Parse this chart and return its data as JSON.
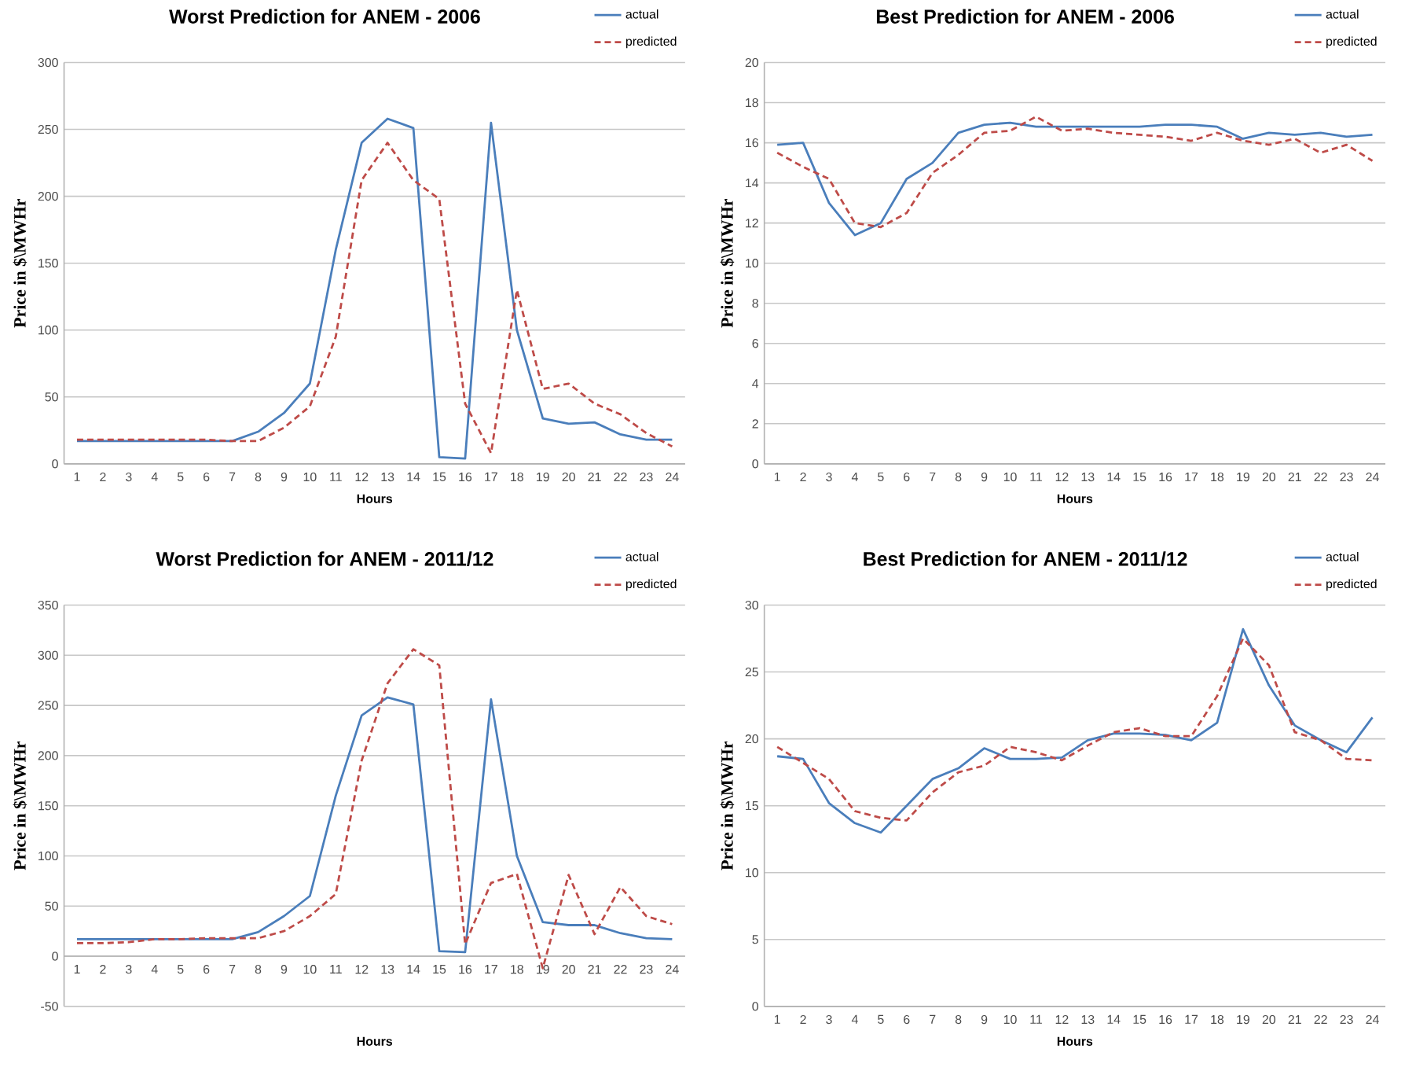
{
  "chart_data": [
    {
      "type": "line",
      "title": "Worst Prediction for ANEM - 2006",
      "xlabel": "Hours",
      "ylabel": "Price in $\\MWHr",
      "categories": [
        "1",
        "2",
        "3",
        "4",
        "5",
        "6",
        "7",
        "8",
        "9",
        "10",
        "11",
        "12",
        "13",
        "14",
        "15",
        "16",
        "17",
        "18",
        "19",
        "20",
        "21",
        "22",
        "23",
        "24"
      ],
      "ylim": [
        0,
        300
      ],
      "yticks": [
        0,
        50,
        100,
        150,
        200,
        250,
        300
      ],
      "grid": "y",
      "legend": "top right",
      "series": [
        {
          "name": "actual",
          "color": "#4a7ebb",
          "line_style": "solid",
          "values": [
            17,
            17,
            17,
            17,
            17,
            17,
            17,
            24,
            38,
            60,
            160,
            240,
            258,
            251,
            5,
            4,
            255,
            100,
            34,
            30,
            31,
            22,
            18,
            18
          ]
        },
        {
          "name": "predicted",
          "color": "#be4b48",
          "line_style": "dashed",
          "values": [
            18,
            18,
            18,
            18,
            18,
            18,
            17,
            17,
            27,
            43,
            95,
            212,
            240,
            212,
            198,
            45,
            8,
            130,
            56,
            60,
            45,
            37,
            23,
            13
          ]
        }
      ]
    },
    {
      "type": "line",
      "title": "Best Prediction for ANEM - 2006",
      "xlabel": "Hours",
      "ylabel": "Price in $\\MWHr",
      "categories": [
        "1",
        "2",
        "3",
        "4",
        "5",
        "6",
        "7",
        "8",
        "9",
        "10",
        "11",
        "12",
        "13",
        "14",
        "15",
        "16",
        "17",
        "18",
        "19",
        "20",
        "21",
        "22",
        "23",
        "24"
      ],
      "ylim": [
        0,
        20
      ],
      "yticks": [
        0,
        2,
        4,
        6,
        8,
        10,
        12,
        14,
        16,
        18,
        20
      ],
      "grid": "y",
      "legend": "top right",
      "series": [
        {
          "name": "actual",
          "color": "#4a7ebb",
          "line_style": "solid",
          "values": [
            15.9,
            16.0,
            13.0,
            11.4,
            12.0,
            14.2,
            15.0,
            16.5,
            16.9,
            17.0,
            16.8,
            16.8,
            16.8,
            16.8,
            16.8,
            16.9,
            16.9,
            16.8,
            16.2,
            16.5,
            16.4,
            16.5,
            16.3,
            16.4
          ]
        },
        {
          "name": "predicted",
          "color": "#be4b48",
          "line_style": "dashed",
          "values": [
            15.5,
            14.8,
            14.2,
            12.0,
            11.8,
            12.5,
            14.5,
            15.4,
            16.5,
            16.6,
            17.3,
            16.6,
            16.7,
            16.5,
            16.4,
            16.3,
            16.1,
            16.5,
            16.1,
            15.9,
            16.2,
            15.5,
            15.9,
            15.1
          ]
        }
      ]
    },
    {
      "type": "line",
      "title": "Worst Prediction for ANEM - 2011/12",
      "xlabel": "Hours",
      "ylabel": "Price in $\\MWHr",
      "categories": [
        "1",
        "2",
        "3",
        "4",
        "5",
        "6",
        "7",
        "8",
        "9",
        "10",
        "11",
        "12",
        "13",
        "14",
        "15",
        "16",
        "17",
        "18",
        "19",
        "20",
        "21",
        "22",
        "23",
        "24"
      ],
      "ylim": [
        -50,
        350
      ],
      "yticks": [
        -50,
        0,
        50,
        100,
        150,
        200,
        250,
        300,
        350
      ],
      "grid": "y",
      "legend": "top right",
      "series": [
        {
          "name": "actual",
          "color": "#4a7ebb",
          "line_style": "solid",
          "values": [
            17,
            17,
            17,
            17,
            17,
            17,
            17,
            24,
            40,
            60,
            160,
            240,
            258,
            251,
            5,
            4,
            256,
            100,
            34,
            31,
            31,
            23,
            18,
            17
          ]
        },
        {
          "name": "predicted",
          "color": "#be4b48",
          "line_style": "dashed",
          "values": [
            13,
            13,
            14,
            17,
            17,
            18,
            18,
            18,
            25,
            40,
            62,
            195,
            272,
            306,
            290,
            12,
            73,
            82,
            -12,
            81,
            22,
            69,
            40,
            32
          ]
        }
      ]
    },
    {
      "type": "line",
      "title": "Best Prediction for ANEM - 2011/12",
      "xlabel": "Hours",
      "ylabel": "Price in $\\MWHr",
      "categories": [
        "1",
        "2",
        "3",
        "4",
        "5",
        "6",
        "7",
        "8",
        "9",
        "10",
        "11",
        "12",
        "13",
        "14",
        "15",
        "16",
        "17",
        "18",
        "19",
        "20",
        "21",
        "22",
        "23",
        "24"
      ],
      "ylim": [
        0,
        30
      ],
      "yticks": [
        0,
        5,
        10,
        15,
        20,
        25,
        30
      ],
      "grid": "y",
      "legend": "top right",
      "series": [
        {
          "name": "actual",
          "color": "#4a7ebb",
          "line_style": "solid",
          "values": [
            18.7,
            18.5,
            15.2,
            13.7,
            13.0,
            15.0,
            17.0,
            17.8,
            19.3,
            18.5,
            18.5,
            18.6,
            19.9,
            20.4,
            20.4,
            20.3,
            19.9,
            21.2,
            28.2,
            24.0,
            21.0,
            19.9,
            19.0,
            21.6
          ]
        },
        {
          "name": "predicted",
          "color": "#be4b48",
          "line_style": "dashed",
          "values": [
            19.4,
            18.2,
            17.0,
            14.6,
            14.1,
            13.9,
            16.0,
            17.5,
            18.0,
            19.4,
            19.0,
            18.4,
            19.5,
            20.5,
            20.8,
            20.2,
            20.2,
            23.2,
            27.5,
            25.5,
            20.5,
            19.9,
            18.5,
            18.4
          ]
        }
      ]
    }
  ]
}
